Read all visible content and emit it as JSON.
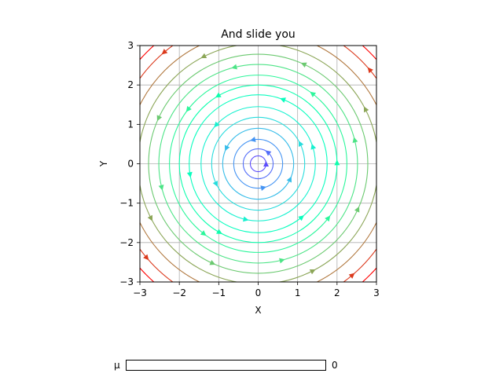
{
  "chart_data": {
    "type": "streamplot",
    "title": "And slide you",
    "xlabel": "X",
    "ylabel": "Y",
    "xlim": [
      -3,
      3
    ],
    "ylim": [
      -3,
      3
    ],
    "xticks": [
      -3,
      -2,
      -1,
      0,
      1,
      2,
      3
    ],
    "yticks": [
      -3,
      -2,
      -1,
      0,
      1,
      2,
      3
    ],
    "xtick_labels": [
      "−3",
      "−2",
      "−1",
      "0",
      "1",
      "2",
      "3"
    ],
    "ytick_labels": [
      "−3",
      "−2",
      "−1",
      "0",
      "1",
      "2",
      "3"
    ],
    "grid": true,
    "field": "circular flow around origin (U = -Y, V = X), colored by speed",
    "colormap": "rainbow",
    "streamline_radii": [
      0.2,
      0.38,
      0.62,
      0.9,
      1.18,
      1.45,
      1.75,
      2.0,
      2.25,
      2.52,
      2.78,
      3.05,
      3.35,
      3.7,
      4.0
    ]
  },
  "slider": {
    "label": "μ",
    "value": "0",
    "fraction": 0
  }
}
